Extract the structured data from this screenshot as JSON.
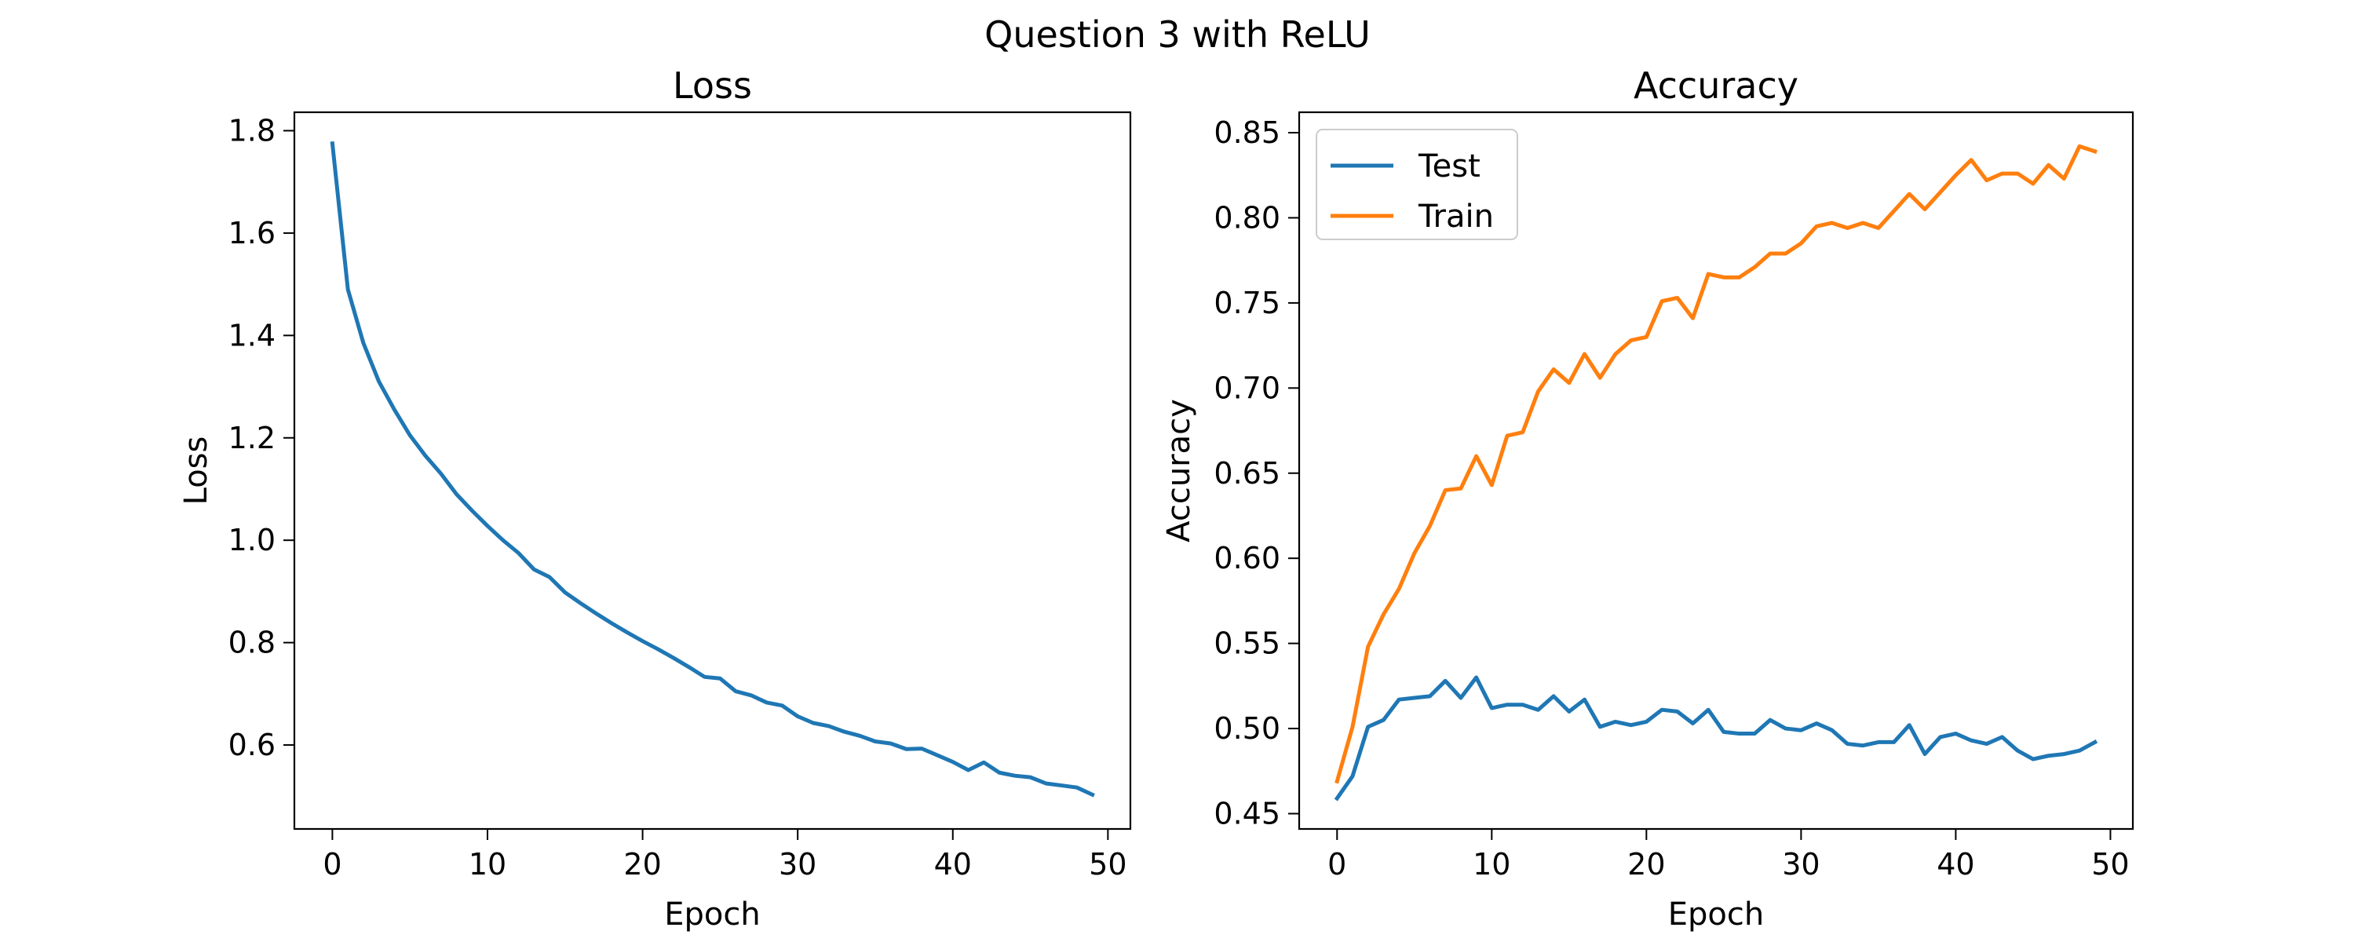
{
  "figure": {
    "suptitle": "Question 3 with ReLU",
    "colors": {
      "Test": "#1f77b4",
      "Train": "#ff7f0e",
      "Loss": "#1f77b4"
    }
  },
  "chart_data": [
    {
      "type": "line",
      "title": "Loss",
      "xlabel": "Epoch",
      "ylabel": "Loss",
      "xlim": [
        -2.45,
        51.45
      ],
      "ylim": [
        0.436,
        1.836
      ],
      "xticks": [
        0,
        10,
        20,
        30,
        40,
        50
      ],
      "yticks": [
        0.6,
        0.8,
        1.0,
        1.2,
        1.4,
        1.6,
        1.8
      ],
      "ytick_decimals": 1,
      "grid": false,
      "legend": null,
      "x": [
        0,
        1,
        2,
        3,
        4,
        5,
        6,
        7,
        8,
        9,
        10,
        11,
        12,
        13,
        14,
        15,
        16,
        17,
        18,
        19,
        20,
        21,
        22,
        23,
        24,
        25,
        26,
        27,
        28,
        29,
        30,
        31,
        32,
        33,
        34,
        35,
        36,
        37,
        38,
        39,
        40,
        41,
        42,
        43,
        44,
        45,
        46,
        47,
        48,
        49
      ],
      "series": [
        {
          "name": "Loss",
          "color_key": "Loss",
          "values": [
            1.775,
            1.49,
            1.385,
            1.31,
            1.255,
            1.205,
            1.165,
            1.13,
            1.09,
            1.058,
            1.028,
            1.0,
            0.975,
            0.943,
            0.928,
            0.898,
            0.877,
            0.857,
            0.838,
            0.82,
            0.803,
            0.787,
            0.77,
            0.752,
            0.733,
            0.73,
            0.705,
            0.697,
            0.683,
            0.677,
            0.656,
            0.643,
            0.637,
            0.626,
            0.618,
            0.607,
            0.603,
            0.592,
            0.593,
            0.58,
            0.567,
            0.551,
            0.566,
            0.546,
            0.54,
            0.537,
            0.525,
            0.521,
            0.517,
            0.503
          ]
        }
      ]
    },
    {
      "type": "line",
      "title": "Accuracy",
      "xlabel": "Epoch",
      "ylabel": "Accuracy",
      "xlim": [
        -2.45,
        51.45
      ],
      "ylim": [
        0.441,
        0.862
      ],
      "xticks": [
        0,
        10,
        20,
        30,
        40,
        50
      ],
      "yticks": [
        0.45,
        0.5,
        0.55,
        0.6,
        0.65,
        0.7,
        0.75,
        0.8,
        0.85
      ],
      "ytick_decimals": 2,
      "grid": false,
      "legend": "top-left",
      "x": [
        0,
        1,
        2,
        3,
        4,
        5,
        6,
        7,
        8,
        9,
        10,
        11,
        12,
        13,
        14,
        15,
        16,
        17,
        18,
        19,
        20,
        21,
        22,
        23,
        24,
        25,
        26,
        27,
        28,
        29,
        30,
        31,
        32,
        33,
        34,
        35,
        36,
        37,
        38,
        39,
        40,
        41,
        42,
        43,
        44,
        45,
        46,
        47,
        48,
        49
      ],
      "series": [
        {
          "name": "Test",
          "color_key": "Test",
          "values": [
            0.459,
            0.472,
            0.501,
            0.505,
            0.517,
            0.518,
            0.519,
            0.528,
            0.518,
            0.53,
            0.512,
            0.514,
            0.514,
            0.511,
            0.519,
            0.51,
            0.517,
            0.501,
            0.504,
            0.502,
            0.504,
            0.511,
            0.51,
            0.503,
            0.511,
            0.498,
            0.497,
            0.497,
            0.505,
            0.5,
            0.499,
            0.503,
            0.499,
            0.491,
            0.49,
            0.492,
            0.492,
            0.502,
            0.485,
            0.495,
            0.497,
            0.493,
            0.491,
            0.495,
            0.487,
            0.482,
            0.484,
            0.485,
            0.487,
            0.492
          ]
        },
        {
          "name": "Train",
          "color_key": "Train",
          "values": [
            0.469,
            0.501,
            0.548,
            0.567,
            0.582,
            0.603,
            0.619,
            0.64,
            0.641,
            0.66,
            0.643,
            0.672,
            0.674,
            0.698,
            0.711,
            0.703,
            0.72,
            0.706,
            0.72,
            0.728,
            0.73,
            0.751,
            0.753,
            0.741,
            0.767,
            0.765,
            0.765,
            0.771,
            0.779,
            0.779,
            0.785,
            0.795,
            0.797,
            0.794,
            0.797,
            0.794,
            0.804,
            0.814,
            0.805,
            0.815,
            0.825,
            0.834,
            0.822,
            0.826,
            0.826,
            0.82,
            0.831,
            0.823,
            0.842,
            0.839
          ]
        }
      ]
    }
  ]
}
